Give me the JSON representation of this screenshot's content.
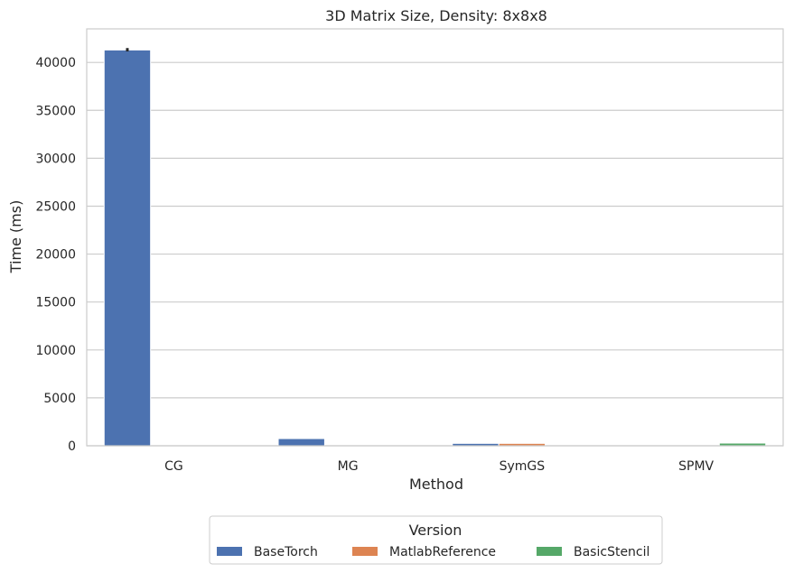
{
  "chart_data": {
    "type": "bar",
    "title": "3D Matrix Size, Density: 8x8x8",
    "xlabel": "Method",
    "ylabel": "Time (ms)",
    "categories": [
      "CG",
      "MG",
      "SymGS",
      "SPMV"
    ],
    "ylim": [
      0,
      43500
    ],
    "yticks": [
      0,
      5000,
      10000,
      15000,
      20000,
      25000,
      30000,
      35000,
      40000
    ],
    "grid": true,
    "legend": {
      "title": "Version",
      "placement": "bottom-center"
    },
    "series": [
      {
        "name": "BaseTorch",
        "color": "#4c72b0",
        "values": [
          41300,
          750,
          250,
          0
        ]
      },
      {
        "name": "MatlabReference",
        "color": "#dd8452",
        "values": [
          0,
          0,
          250,
          0
        ]
      },
      {
        "name": "BasicStencil",
        "color": "#55a868",
        "values": [
          0,
          0,
          0,
          280
        ]
      }
    ],
    "error_bars": [
      {
        "series": "BaseTorch",
        "category": "CG",
        "low": 41150,
        "high": 41500
      }
    ]
  }
}
